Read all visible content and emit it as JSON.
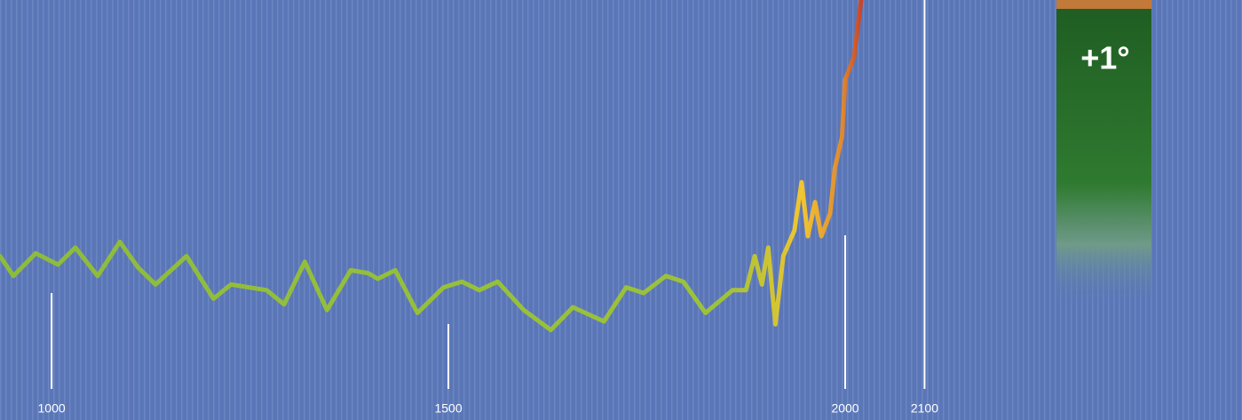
{
  "chart_data": {
    "type": "line",
    "x": [
      935,
      952,
      980,
      1008,
      1030,
      1058,
      1086,
      1109,
      1131,
      1170,
      1204,
      1226,
      1271,
      1293,
      1319,
      1347,
      1377,
      1399,
      1411,
      1433,
      1461,
      1494,
      1517,
      1539,
      1562,
      1595,
      1629,
      1657,
      1696,
      1724,
      1746,
      1774,
      1796,
      1824,
      1858,
      1875,
      1886,
      1895,
      1903,
      1912,
      1922,
      1936,
      1945,
      1953,
      1962,
      1970,
      1981,
      1987,
      1996,
      2000,
      2011,
      2020
    ],
    "series": [
      {
        "colors": [
          "#8dbb3c",
          "#9cc23a",
          "#f2c531",
          "#e0892f",
          "#c8452a"
        ],
        "values": [
          0.13,
          0.06,
          0.14,
          0.1,
          0.16,
          0.06,
          0.18,
          0.09,
          0.03,
          0.13,
          -0.02,
          0.03,
          0.01,
          -0.04,
          0.11,
          -0.06,
          0.08,
          0.07,
          0.05,
          0.08,
          -0.07,
          0.02,
          0.04,
          0.01,
          0.04,
          -0.06,
          -0.13,
          -0.05,
          -0.1,
          0.02,
          0,
          0.06,
          0.04,
          -0.07,
          0.01,
          0.01,
          0.13,
          0.03,
          0.16,
          -0.11,
          0.13,
          0.22,
          0.39,
          0.2,
          0.32,
          0.2,
          0.28,
          0.44,
          0.55,
          0.75,
          0.83,
          1.03
        ]
      }
    ],
    "xlim": [
      935,
      2500
    ],
    "xticks": [
      1000,
      1500,
      2000,
      2100
    ],
    "ylim": [
      -0.4,
      1.0
    ],
    "annotation": {
      "text": "+1°",
      "value": 1
    }
  }
}
